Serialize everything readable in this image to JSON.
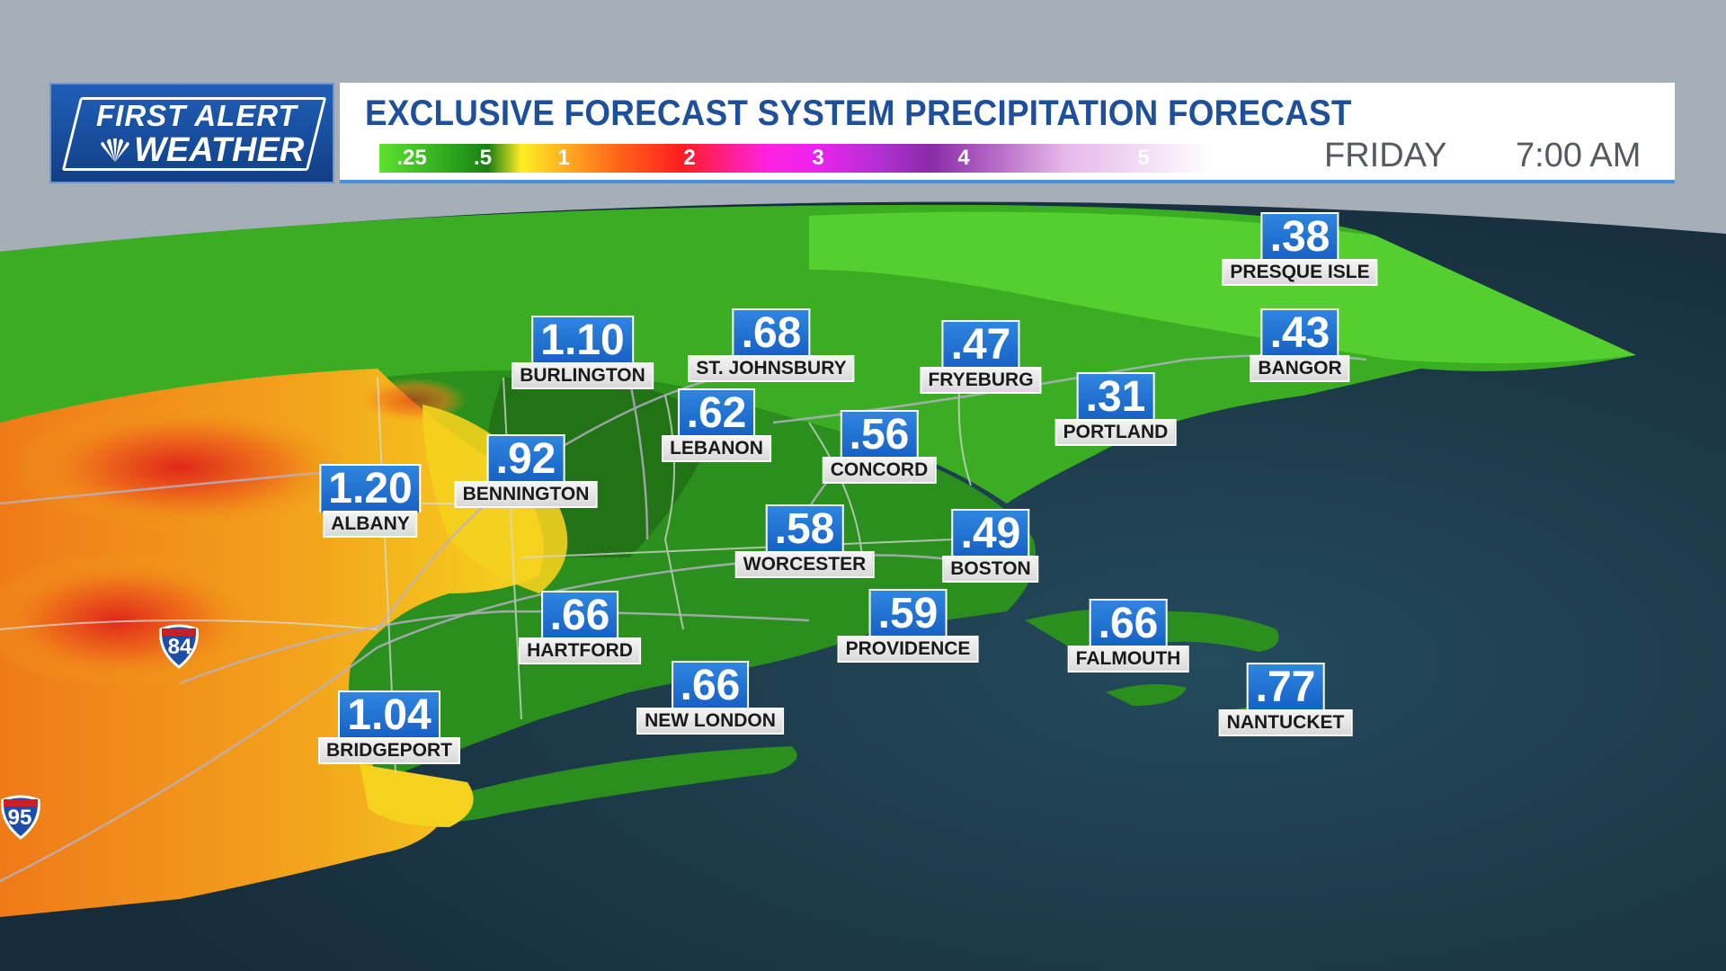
{
  "header": {
    "logo_line1": "FIRST ALERT",
    "logo_line2": "WEATHER",
    "title": "EXCLUSIVE FORECAST SYSTEM PRECIPITATION FORECAST",
    "scale_labels": [
      ".25",
      ".5",
      "1",
      "2",
      "3",
      "4",
      "5"
    ],
    "day": "FRIDAY",
    "time": "7:00 AM"
  },
  "cities": [
    {
      "name": "PRESQUE ISLE",
      "value": ".38"
    },
    {
      "name": "BURLINGTON",
      "value": "1.10"
    },
    {
      "name": "ST. JOHNSBURY",
      "value": ".68"
    },
    {
      "name": "FRYEBURG",
      "value": ".47"
    },
    {
      "name": "BANGOR",
      "value": ".43"
    },
    {
      "name": "LEBANON",
      "value": ".62"
    },
    {
      "name": "PORTLAND",
      "value": ".31"
    },
    {
      "name": "CONCORD",
      "value": ".56"
    },
    {
      "name": "BENNINGTON",
      "value": ".92"
    },
    {
      "name": "ALBANY",
      "value": "1.20"
    },
    {
      "name": "WORCESTER",
      "value": ".58"
    },
    {
      "name": "BOSTON",
      "value": ".49"
    },
    {
      "name": "HARTFORD",
      "value": ".66"
    },
    {
      "name": "PROVIDENCE",
      "value": ".59"
    },
    {
      "name": "FALMOUTH",
      "value": ".66"
    },
    {
      "name": "NEW LONDON",
      "value": ".66"
    },
    {
      "name": "NANTUCKET",
      "value": ".77"
    },
    {
      "name": "BRIDGEPORT",
      "value": "1.04"
    }
  ],
  "highways": [
    {
      "number": "84"
    },
    {
      "number": "95"
    }
  ],
  "colors": {
    "ocean": "#1b3646",
    "land_green": "#2f9e1e",
    "light_green": "#49c22c",
    "dark_green": "#1a5a14",
    "yellow": "#f2d21a",
    "orange": "#f08a1a",
    "red": "#e4301a",
    "label_blue": "#1f6fd0"
  }
}
